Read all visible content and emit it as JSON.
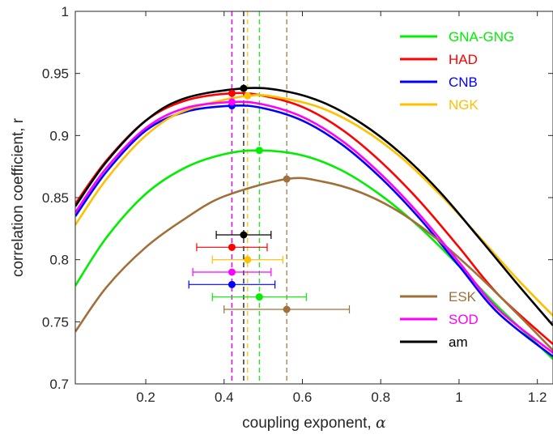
{
  "chart_data": {
    "type": "line",
    "title": "",
    "xlabel": "coupling exponent, ",
    "xlabel_symbol": "α",
    "ylabel": "correlation coefficient, r",
    "xlim": [
      0.02,
      1.24
    ],
    "ylim": [
      0.7,
      1.0
    ],
    "x_ticks": [
      0.2,
      0.4,
      0.6,
      0.8,
      1.0,
      1.2
    ],
    "x_tick_labels": [
      "0.2",
      "0.4",
      "0.6",
      "0.8",
      "1",
      "1.2"
    ],
    "y_ticks": [
      0.7,
      0.75,
      0.8,
      0.85,
      0.9,
      0.95,
      1.0
    ],
    "y_tick_labels": [
      "0.7",
      "0.75",
      "0.8",
      "0.85",
      "0.9",
      "0.95",
      "1"
    ],
    "grid": false,
    "legend_top": [
      "GNA-GNG",
      "HAD",
      "CNB",
      "NGK"
    ],
    "legend_bottom": [
      "ESK",
      "SOD",
      "am"
    ],
    "series": [
      {
        "name": "GNA-GNG",
        "color": "#00ee00",
        "x": [
          0.02,
          0.1,
          0.2,
          0.3,
          0.4,
          0.49,
          0.6,
          0.7,
          0.8,
          0.9,
          1.0,
          1.1,
          1.24
        ],
        "y": [
          0.779,
          0.818,
          0.853,
          0.874,
          0.885,
          0.888,
          0.884,
          0.872,
          0.852,
          0.826,
          0.795,
          0.762,
          0.72
        ],
        "peak_x": 0.49,
        "peak_y": 0.888,
        "est_x": 0.49,
        "est_y": 0.77,
        "ci": [
          0.37,
          0.61
        ]
      },
      {
        "name": "HAD",
        "color": "#ff0000",
        "x": [
          0.02,
          0.1,
          0.2,
          0.3,
          0.42,
          0.5,
          0.6,
          0.7,
          0.8,
          0.9,
          1.0,
          1.1,
          1.24
        ],
        "y": [
          0.845,
          0.88,
          0.912,
          0.928,
          0.934,
          0.932,
          0.923,
          0.905,
          0.879,
          0.847,
          0.81,
          0.772,
          0.732
        ],
        "peak_x": 0.42,
        "peak_y": 0.934,
        "est_x": 0.42,
        "est_y": 0.81,
        "ci": [
          0.33,
          0.51
        ]
      },
      {
        "name": "CNB",
        "color": "#0000ff",
        "x": [
          0.02,
          0.1,
          0.2,
          0.3,
          0.42,
          0.5,
          0.6,
          0.7,
          0.8,
          0.9,
          1.0,
          1.1,
          1.24
        ],
        "y": [
          0.835,
          0.871,
          0.904,
          0.919,
          0.924,
          0.922,
          0.912,
          0.893,
          0.866,
          0.833,
          0.795,
          0.757,
          0.722
        ],
        "peak_x": 0.42,
        "peak_y": 0.924,
        "est_x": 0.42,
        "est_y": 0.78,
        "ci": [
          0.31,
          0.53
        ]
      },
      {
        "name": "NGK",
        "color": "#ffc000",
        "x": [
          0.02,
          0.1,
          0.2,
          0.3,
          0.46,
          0.55,
          0.65,
          0.75,
          0.85,
          0.95,
          1.05,
          1.15,
          1.24
        ],
        "y": [
          0.828,
          0.865,
          0.9,
          0.92,
          0.932,
          0.93,
          0.922,
          0.906,
          0.883,
          0.853,
          0.819,
          0.784,
          0.755
        ],
        "peak_x": 0.46,
        "peak_y": 0.932,
        "est_x": 0.46,
        "est_y": 0.8,
        "ci": [
          0.37,
          0.55
        ]
      },
      {
        "name": "ESK",
        "color": "#a0703a",
        "x": [
          0.02,
          0.1,
          0.2,
          0.3,
          0.4,
          0.56,
          0.65,
          0.75,
          0.85,
          0.95,
          1.05,
          1.15,
          1.24
        ],
        "y": [
          0.742,
          0.778,
          0.81,
          0.833,
          0.851,
          0.865,
          0.863,
          0.854,
          0.838,
          0.815,
          0.787,
          0.756,
          0.727
        ],
        "peak_x": 0.56,
        "peak_y": 0.865,
        "est_x": 0.56,
        "est_y": 0.76,
        "ci": [
          0.4,
          0.72
        ]
      },
      {
        "name": "SOD",
        "color": "#ff00ff",
        "x": [
          0.02,
          0.1,
          0.2,
          0.3,
          0.42,
          0.5,
          0.6,
          0.7,
          0.8,
          0.9,
          1.0,
          1.1,
          1.24
        ],
        "y": [
          0.838,
          0.874,
          0.906,
          0.922,
          0.927,
          0.925,
          0.915,
          0.896,
          0.869,
          0.836,
          0.798,
          0.76,
          0.725
        ],
        "peak_x": 0.42,
        "peak_y": 0.927,
        "est_x": 0.42,
        "est_y": 0.79,
        "ci": [
          0.32,
          0.52
        ]
      },
      {
        "name": "am",
        "color": "#000000",
        "x": [
          0.02,
          0.1,
          0.2,
          0.3,
          0.45,
          0.55,
          0.65,
          0.75,
          0.85,
          0.95,
          1.05,
          1.15,
          1.24
        ],
        "y": [
          0.843,
          0.879,
          0.912,
          0.93,
          0.938,
          0.936,
          0.927,
          0.91,
          0.886,
          0.855,
          0.818,
          0.78,
          0.747
        ],
        "peak_x": 0.45,
        "peak_y": 0.938,
        "est_x": 0.45,
        "est_y": 0.82,
        "ci": [
          0.38,
          0.52
        ]
      }
    ]
  }
}
